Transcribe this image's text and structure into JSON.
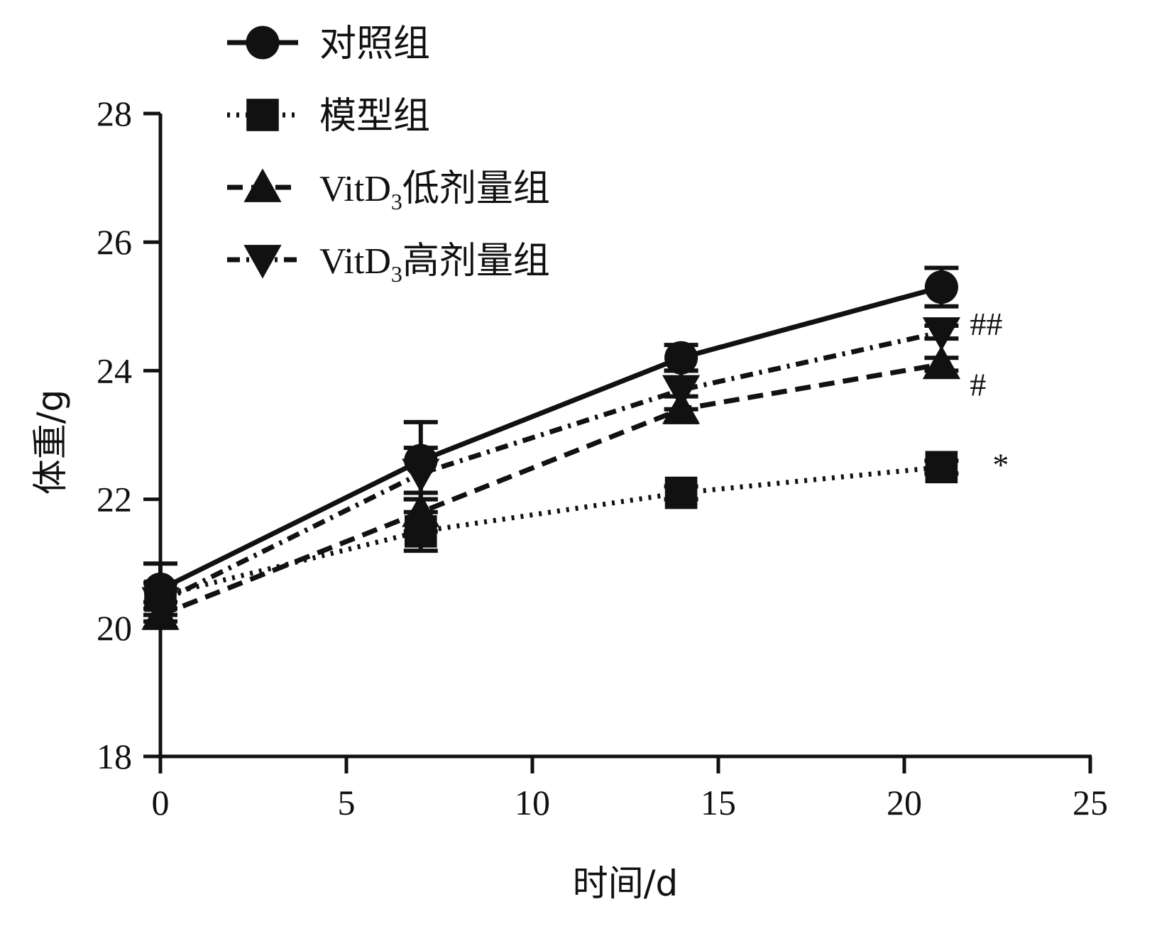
{
  "chart_data": {
    "type": "line",
    "xlabel": "时间/d",
    "ylabel": "体重/g",
    "xlim": [
      0,
      25
    ],
    "ylim": [
      18,
      28
    ],
    "x_ticks": [
      "0",
      "5",
      "10",
      "15",
      "20",
      "25"
    ],
    "y_ticks": [
      "18",
      "20",
      "22",
      "24",
      "26",
      "28"
    ],
    "grid": false,
    "legend_position": "top-left",
    "x": [
      0,
      7,
      14,
      21
    ],
    "series": [
      {
        "name": "对照组",
        "name_parts": [],
        "marker": "circle",
        "line_style": "solid",
        "values": [
          20.6,
          22.6,
          24.2,
          25.3
        ],
        "errors": [
          0.4,
          0.6,
          0.2,
          0.3
        ],
        "annotation": ""
      },
      {
        "name": "模型组",
        "name_parts": [],
        "marker": "square",
        "line_style": "dotted",
        "values": [
          20.5,
          21.5,
          22.1,
          22.5
        ],
        "errors": [
          0.2,
          0.3,
          0.1,
          0.1
        ],
        "annotation": "*"
      },
      {
        "name": "VitD3低剂量组",
        "name_parts": [
          "VitD",
          "3",
          "低剂量组"
        ],
        "marker": "triangle-up",
        "line_style": "dashed",
        "values": [
          20.2,
          21.8,
          23.4,
          24.1
        ],
        "errors": [
          0.2,
          0.3,
          0.2,
          0.1
        ],
        "annotation": "#"
      },
      {
        "name": "VitD3高剂量组",
        "name_parts": [
          "VitD",
          "3",
          "高剂量组"
        ],
        "marker": "triangle-down",
        "line_style": "dash-dot",
        "values": [
          20.4,
          22.4,
          23.7,
          24.6
        ],
        "errors": [
          0.3,
          0.4,
          0.3,
          0.1
        ],
        "annotation": "##"
      }
    ]
  }
}
